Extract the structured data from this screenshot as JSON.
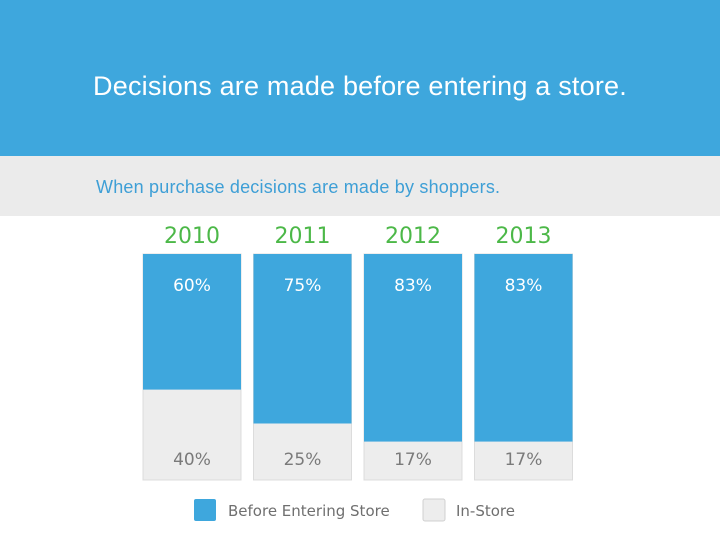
{
  "header": {
    "title": "Decisions are made before entering a store."
  },
  "subheader": {
    "subtitle": "When purchase decisions are made by shoppers."
  },
  "colors": {
    "header_bg": "#3ea7dd",
    "subheader_bg": "#ebebeb",
    "subtitle_text": "#3e9fd6",
    "year_text": "#4cb848",
    "before_fill": "#3ea7dd",
    "instore_fill": "#ededed",
    "instore_text": "#7a7a7a"
  },
  "chart_data": {
    "type": "bar",
    "stacked": true,
    "normalized": true,
    "categories": [
      "2010",
      "2011",
      "2012",
      "2013"
    ],
    "series": [
      {
        "name": "Before Entering Store",
        "values": [
          60,
          75,
          83,
          83
        ],
        "labels": [
          "60%",
          "75%",
          "83%",
          "83%"
        ]
      },
      {
        "name": "In-Store",
        "values": [
          40,
          25,
          17,
          17
        ],
        "labels": [
          "40%",
          "25%",
          "17%",
          "17%"
        ]
      }
    ],
    "ylim": [
      0,
      100
    ],
    "legend_position": "bottom",
    "grid": false
  }
}
